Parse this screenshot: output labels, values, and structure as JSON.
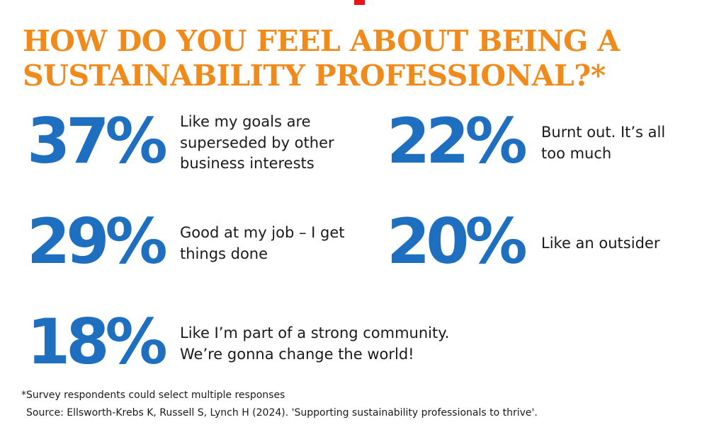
{
  "colors": {
    "accent_orange": "#F08A1A",
    "stat_blue": "#1F6FC0",
    "marker_red": "#E8141A"
  },
  "title": {
    "line1": "HOW DO YOU FEEL ABOUT BEING A",
    "line2": "SUSTAINABILITY PROFESSIONAL?*"
  },
  "stats": [
    {
      "percent": "37%",
      "lines": [
        "Like my goals are",
        "superseded by other",
        "business interests"
      ]
    },
    {
      "percent": "22%",
      "lines": [
        "Burnt out. It’s all",
        "too much"
      ]
    },
    {
      "percent": "29%",
      "lines": [
        "Good at my job – I get",
        "things done"
      ]
    },
    {
      "percent": "20%",
      "lines": [
        "Like an outsider"
      ]
    },
    {
      "percent": "18%",
      "lines": [
        "Like I’m part of a strong community.",
        "We’re gonna change the world!"
      ]
    }
  ],
  "footnote": "*Survey respondents could select multiple responses",
  "source": "Source: Ellsworth-Krebs K, Russell S, Lynch H (2024). 'Supporting sustainability professionals to thrive'."
}
